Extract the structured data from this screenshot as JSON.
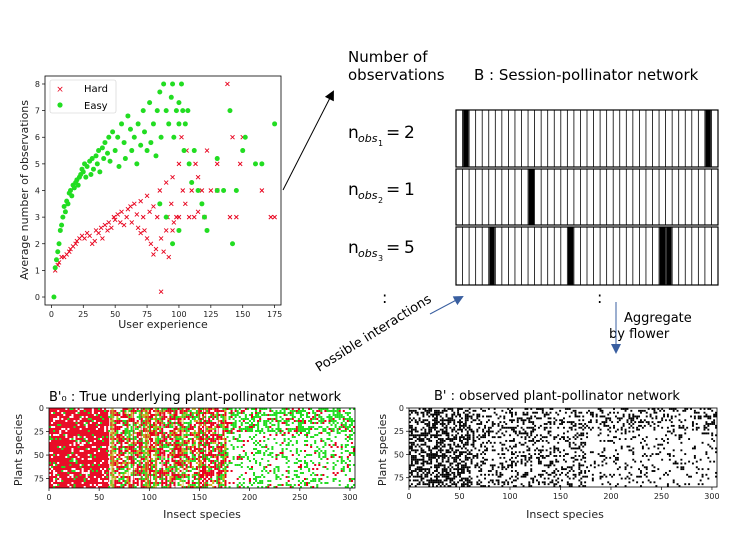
{
  "labels": {
    "number_of_obs_line1": "Number of",
    "number_of_obs_line2": "observations",
    "b_title": "B : Session-pollinator network",
    "possible_interactions": "Possible interactions",
    "aggregate_line1": "Aggregate",
    "aggregate_line2": "by flower",
    "dots": ":",
    "nobs": [
      {
        "sub": "1",
        "val": "2"
      },
      {
        "sub": "2",
        "val": "1"
      },
      {
        "sub": "3",
        "val": "5"
      }
    ]
  },
  "chart_data": [
    {
      "type": "scatter",
      "title": "",
      "xlabel": "User experience",
      "ylabel": "Average number of observations",
      "xlim": [
        -5,
        180
      ],
      "ylim": [
        -0.3,
        8.3
      ],
      "xticks": [
        0,
        25,
        50,
        75,
        100,
        125,
        150,
        175
      ],
      "yticks": [
        0,
        1,
        2,
        3,
        4,
        5,
        6,
        7,
        8
      ],
      "legend": "top-left",
      "series": [
        {
          "name": "Hard",
          "marker": "x",
          "color": "#e8001c",
          "points": [
            [
              3,
              1
            ],
            [
              5,
              1.2
            ],
            [
              6,
              1.3
            ],
            [
              8,
              1.5
            ],
            [
              10,
              1.5
            ],
            [
              12,
              1.6
            ],
            [
              14,
              1.7
            ],
            [
              15,
              1.8
            ],
            [
              17,
              1.9
            ],
            [
              19,
              2
            ],
            [
              20,
              2.1
            ],
            [
              22,
              2.2
            ],
            [
              24,
              2.3
            ],
            [
              26,
              2.2
            ],
            [
              28,
              2.4
            ],
            [
              30,
              2.3
            ],
            [
              32,
              2
            ],
            [
              34,
              2.1
            ],
            [
              35,
              2.5
            ],
            [
              37,
              2.4
            ],
            [
              39,
              2.6
            ],
            [
              40,
              2.2
            ],
            [
              42,
              2.7
            ],
            [
              44,
              2.5
            ],
            [
              45,
              2.8
            ],
            [
              47,
              2.6
            ],
            [
              49,
              3
            ],
            [
              50,
              2.9
            ],
            [
              52,
              3.1
            ],
            [
              54,
              2.8
            ],
            [
              55,
              3.2
            ],
            [
              57,
              2.7
            ],
            [
              59,
              3
            ],
            [
              60,
              3.3
            ],
            [
              62,
              3.4
            ],
            [
              63,
              2.8
            ],
            [
              65,
              3.5
            ],
            [
              67,
              3.1
            ],
            [
              68,
              2.6
            ],
            [
              70,
              3.6
            ],
            [
              72,
              3
            ],
            [
              73,
              2.5
            ],
            [
              75,
              3.8
            ],
            [
              77,
              3.2
            ],
            [
              78,
              2
            ],
            [
              80,
              3.4
            ],
            [
              82,
              1.8
            ],
            [
              83,
              3
            ],
            [
              85,
              4
            ],
            [
              86,
              2.2
            ],
            [
              88,
              1.7
            ],
            [
              90,
              2.5
            ],
            [
              90,
              4.3
            ],
            [
              91,
              3
            ],
            [
              92,
              1.5
            ],
            [
              94,
              3.5
            ],
            [
              95,
              4.5
            ],
            [
              96,
              2.8
            ],
            [
              98,
              3
            ],
            [
              100,
              5
            ],
            [
              100,
              3
            ],
            [
              102,
              6
            ],
            [
              103,
              4
            ],
            [
              105,
              3.5
            ],
            [
              106,
              5.5
            ],
            [
              108,
              3
            ],
            [
              110,
              4
            ],
            [
              112,
              3
            ],
            [
              113,
              5
            ],
            [
              115,
              3.2
            ],
            [
              118,
              4
            ],
            [
              120,
              3
            ],
            [
              122,
              5.5
            ],
            [
              125,
              4
            ],
            [
              130,
              4
            ],
            [
              138,
              8
            ],
            [
              140,
              3
            ],
            [
              142,
              6
            ],
            [
              145,
              3
            ],
            [
              148,
              5
            ],
            [
              150,
              6
            ],
            [
              165,
              4
            ],
            [
              172,
              3
            ],
            [
              175,
              3
            ],
            [
              130,
              5
            ],
            [
              115,
              4.5
            ],
            [
              95,
              2.5
            ],
            [
              80,
              1.6
            ],
            [
              86,
              0.2
            ],
            [
              75,
              2.2
            ],
            [
              70,
              2.4
            ]
          ]
        },
        {
          "name": "Easy",
          "marker": "o",
          "color": "#22dd22",
          "points": [
            [
              2,
              0
            ],
            [
              3,
              1.1
            ],
            [
              4,
              1.4
            ],
            [
              5,
              1.7
            ],
            [
              6,
              2
            ],
            [
              7,
              2.5
            ],
            [
              8,
              2.7
            ],
            [
              9,
              3
            ],
            [
              10,
              3.4
            ],
            [
              11,
              3.2
            ],
            [
              12,
              3.6
            ],
            [
              13,
              3.5
            ],
            [
              14,
              3.9
            ],
            [
              15,
              4
            ],
            [
              16,
              3.8
            ],
            [
              17,
              4.2
            ],
            [
              18,
              4.1
            ],
            [
              19,
              4.3
            ],
            [
              20,
              4.4
            ],
            [
              21,
              4.2
            ],
            [
              22,
              4.5
            ],
            [
              23,
              4.6
            ],
            [
              24,
              4.8
            ],
            [
              25,
              4.7
            ],
            [
              26,
              5
            ],
            [
              27,
              4.5
            ],
            [
              28,
              4.9
            ],
            [
              30,
              5.1
            ],
            [
              31,
              4.6
            ],
            [
              32,
              5.2
            ],
            [
              33,
              4.8
            ],
            [
              35,
              5.3
            ],
            [
              36,
              5
            ],
            [
              37,
              5.5
            ],
            [
              38,
              4.7
            ],
            [
              40,
              5.6
            ],
            [
              41,
              5.2
            ],
            [
              42,
              5.8
            ],
            [
              44,
              5.4
            ],
            [
              45,
              6
            ],
            [
              46,
              5.1
            ],
            [
              48,
              6.2
            ],
            [
              50,
              5.5
            ],
            [
              52,
              6
            ],
            [
              53,
              4.9
            ],
            [
              55,
              6.5
            ],
            [
              57,
              5.8
            ],
            [
              58,
              5.2
            ],
            [
              60,
              6.8
            ],
            [
              62,
              6.3
            ],
            [
              63,
              5.5
            ],
            [
              65,
              6
            ],
            [
              67,
              5
            ],
            [
              68,
              6.5
            ],
            [
              70,
              5.7
            ],
            [
              72,
              7
            ],
            [
              73,
              6.2
            ],
            [
              75,
              5.5
            ],
            [
              77,
              7.3
            ],
            [
              78,
              5.8
            ],
            [
              80,
              6.5
            ],
            [
              82,
              5.3
            ],
            [
              83,
              7
            ],
            [
              85,
              7.7
            ],
            [
              86,
              6
            ],
            [
              88,
              8
            ],
            [
              90,
              7
            ],
            [
              92,
              6.5
            ],
            [
              94,
              7.5
            ],
            [
              95,
              8
            ],
            [
              96,
              6
            ],
            [
              98,
              7
            ],
            [
              100,
              7.3
            ],
            [
              100,
              6.5
            ],
            [
              102,
              8
            ],
            [
              103,
              7
            ],
            [
              104,
              5.5
            ],
            [
              105,
              6.5
            ],
            [
              107,
              7
            ],
            [
              108,
              5
            ],
            [
              110,
              4.3
            ],
            [
              112,
              5.5
            ],
            [
              115,
              4
            ],
            [
              118,
              3.5
            ],
            [
              120,
              3
            ],
            [
              122,
              2.5
            ],
            [
              130,
              4
            ],
            [
              135,
              4
            ],
            [
              140,
              7
            ],
            [
              142,
              2
            ],
            [
              145,
              4
            ],
            [
              150,
              5.5
            ],
            [
              152,
              6
            ],
            [
              160,
              5
            ],
            [
              165,
              5
            ],
            [
              175,
              6.5
            ],
            [
              95,
              2
            ],
            [
              90,
              3
            ],
            [
              85,
              3.5
            ],
            [
              100,
              2.5
            ],
            [
              130,
              5.2
            ]
          ]
        }
      ]
    },
    {
      "type": "heatmap",
      "title": "B'₀ : True underlying plant-pollinator network",
      "xlabel": "Insect species",
      "ylabel": "Plant species",
      "xlim": [
        0,
        305
      ],
      "ylim": [
        0,
        85
      ],
      "xticks": [
        0,
        50,
        100,
        150,
        200,
        250,
        300
      ],
      "yticks": [
        0,
        25,
        50,
        75
      ],
      "colors": [
        "#e8001c",
        "#22dd22",
        "#c8b020"
      ]
    },
    {
      "type": "heatmap",
      "title": "B' : observed plant-pollinator network",
      "xlabel": "Insect species",
      "ylabel": "Plant species",
      "xlim": [
        0,
        305
      ],
      "ylim": [
        0,
        85
      ],
      "xticks": [
        0,
        50,
        100,
        150,
        200,
        250,
        300
      ],
      "yticks": [
        0,
        25,
        50,
        75
      ],
      "colors": [
        "#000000"
      ]
    }
  ]
}
